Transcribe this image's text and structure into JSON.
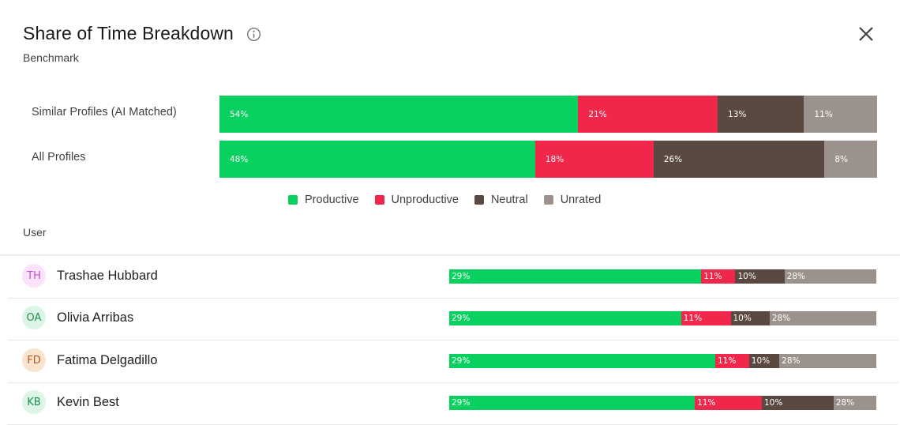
{
  "header": {
    "title": "Share of Time Breakdown",
    "subtitle": "Benchmark"
  },
  "colors": {
    "productive": "#08d160",
    "unproductive": "#f0264a",
    "neutral": "#5a4941",
    "unrated": "#9c928d"
  },
  "legend": [
    {
      "key": "productive",
      "label": "Productive"
    },
    {
      "key": "unproductive",
      "label": "Unproductive"
    },
    {
      "key": "neutral",
      "label": "Neutral"
    },
    {
      "key": "unrated",
      "label": "Unrated"
    }
  ],
  "table": {
    "user_header": "User"
  },
  "chart_data": {
    "type": "bar",
    "stacked": true,
    "orientation": "horizontal",
    "series_keys": [
      "productive",
      "unproductive",
      "neutral",
      "unrated"
    ],
    "benchmark": [
      {
        "label": "Similar Profiles (AI Matched)",
        "values": [
          54,
          21,
          13,
          11
        ],
        "labels": [
          "54%",
          "21%",
          "13%",
          "11%"
        ]
      },
      {
        "label": "All Profiles",
        "values": [
          48,
          18,
          26,
          8
        ],
        "labels": [
          "48%",
          "18%",
          "26%",
          "8%"
        ]
      }
    ],
    "users": [
      {
        "initials": "TH",
        "name": "Trashae Hubbard",
        "avatar_bg": "#fbe3fb",
        "avatar_fg": "#c04fcf",
        "values": [
          29,
          11,
          10,
          28
        ],
        "widths": [
          59,
          8,
          11.5,
          21.5
        ],
        "labels": [
          "29%",
          "11%",
          "10%",
          "28%"
        ]
      },
      {
        "initials": "OA",
        "name": "Olivia Arribas",
        "avatar_bg": "#dcf5e6",
        "avatar_fg": "#1f8f4d",
        "values": [
          29,
          11,
          10,
          28
        ],
        "widths": [
          54.3,
          11.6,
          9.1,
          25.0
        ],
        "labels": [
          "29%",
          "11%",
          "10%",
          "28%"
        ]
      },
      {
        "initials": "FD",
        "name": "Fatima Delgadillo",
        "avatar_bg": "#fbe4cf",
        "avatar_fg": "#b0581f",
        "values": [
          29,
          11,
          10,
          28
        ],
        "widths": [
          62.3,
          7.9,
          7.1,
          22.7
        ],
        "labels": [
          "29%",
          "11%",
          "10%",
          "28%"
        ]
      },
      {
        "initials": "KB",
        "name": "Kevin Best",
        "avatar_bg": "#dcf5e6",
        "avatar_fg": "#1f8f4d",
        "values": [
          29,
          11,
          10,
          28
        ],
        "widths": [
          57.5,
          15.7,
          16.8,
          10.0
        ],
        "labels": [
          "29%",
          "11%",
          "10%",
          "28%"
        ]
      }
    ]
  }
}
